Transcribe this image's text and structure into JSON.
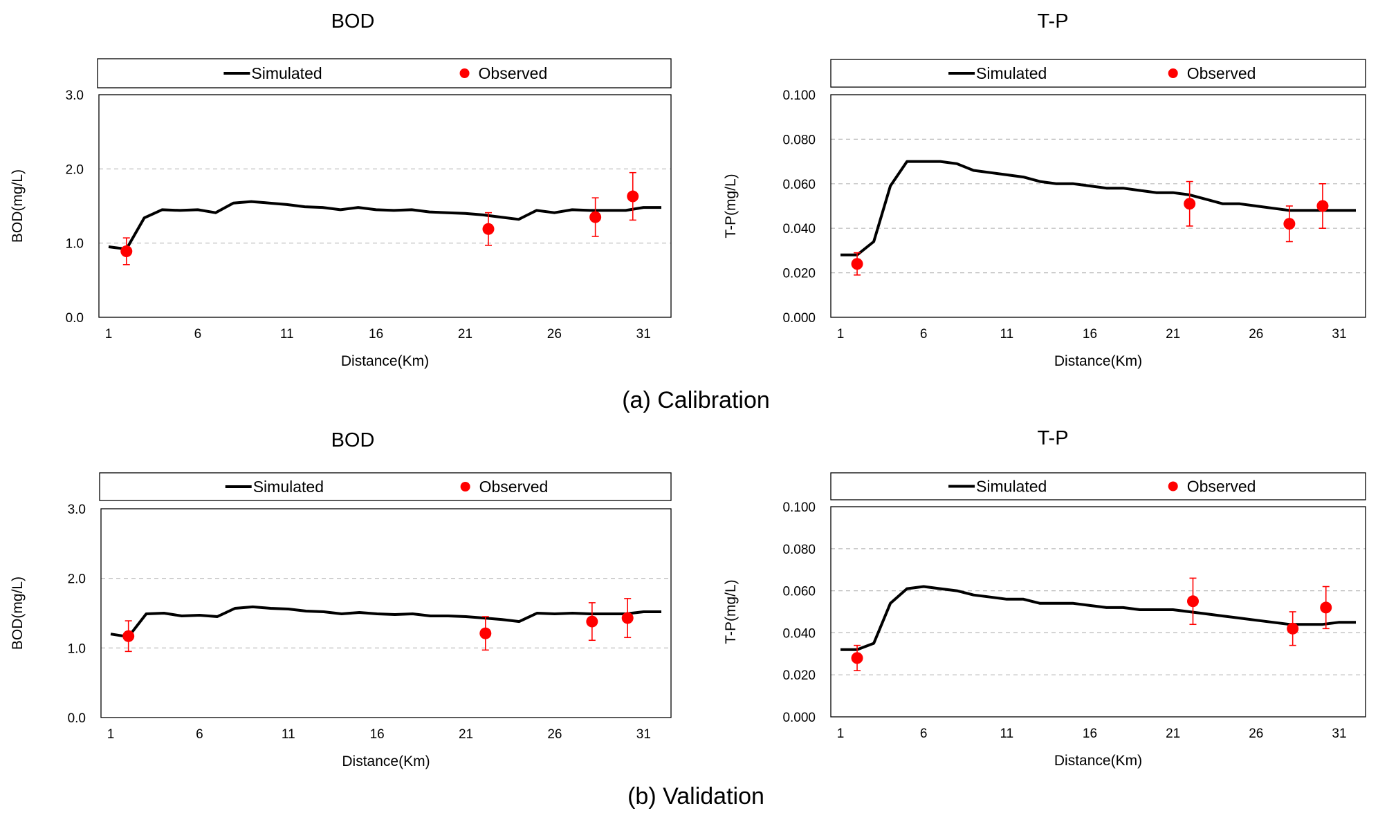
{
  "colors": {
    "simulated": "#000000",
    "observed": "#ff0000",
    "grid": "#b8b8b8"
  },
  "captions": [
    "(a) Calibration",
    "(b) Validation"
  ],
  "chart_data": [
    {
      "type": "line",
      "title": "BOD",
      "group": "Calibration",
      "xlabel": "Distance(Km)",
      "ylabel": "BOD(mg/L)",
      "xlim": [
        1,
        32
      ],
      "ylim": [
        0,
        3
      ],
      "x_ticks": [
        1,
        6,
        11,
        16,
        21,
        26,
        31
      ],
      "y_ticks": [
        "0.0",
        "1.0",
        "2.0",
        "3.0"
      ],
      "y_tick_values": [
        0,
        1,
        2,
        3
      ],
      "legend": [
        "Simulated",
        "Observed"
      ],
      "legend_placement": "top",
      "series": [
        {
          "name": "Simulated",
          "kind": "line",
          "x": [
            1,
            2,
            3,
            4,
            5,
            6,
            7,
            8,
            9,
            10,
            11,
            12,
            13,
            14,
            15,
            16,
            17,
            18,
            19,
            20,
            21,
            22,
            23,
            24,
            25,
            26,
            27,
            28,
            29,
            30,
            31,
            32
          ],
          "y": [
            0.95,
            0.92,
            1.34,
            1.45,
            1.44,
            1.45,
            1.41,
            1.54,
            1.56,
            1.54,
            1.52,
            1.49,
            1.48,
            1.45,
            1.48,
            1.45,
            1.44,
            1.45,
            1.42,
            1.41,
            1.4,
            1.38,
            1.35,
            1.32,
            1.44,
            1.41,
            1.45,
            1.44,
            1.44,
            1.44,
            1.48,
            1.48
          ]
        },
        {
          "name": "Observed",
          "kind": "scatter",
          "x": [
            2,
            22.3,
            28.3,
            30.4
          ],
          "y": [
            0.89,
            1.19,
            1.35,
            1.63
          ],
          "err": [
            0.18,
            0.22,
            0.26,
            0.32
          ]
        }
      ]
    },
    {
      "type": "line",
      "title": "T-P",
      "group": "Calibration",
      "xlabel": "Distance(Km)",
      "ylabel": "T-P(mg/L)",
      "xlim": [
        1,
        32
      ],
      "ylim": [
        0,
        0.1
      ],
      "x_ticks": [
        1,
        6,
        11,
        16,
        21,
        26,
        31
      ],
      "y_ticks": [
        "0.000",
        "0.020",
        "0.040",
        "0.060",
        "0.080",
        "0.100"
      ],
      "y_tick_values": [
        0,
        0.02,
        0.04,
        0.06,
        0.08,
        0.1
      ],
      "legend": [
        "Simulated",
        "Observed"
      ],
      "legend_placement": "top",
      "series": [
        {
          "name": "Simulated",
          "kind": "line",
          "x": [
            1,
            2,
            3,
            4,
            5,
            6,
            7,
            8,
            9,
            10,
            11,
            12,
            13,
            14,
            15,
            16,
            17,
            18,
            19,
            20,
            21,
            22,
            23,
            24,
            25,
            26,
            27,
            28,
            29,
            30,
            31,
            32
          ],
          "y": [
            0.028,
            0.028,
            0.034,
            0.059,
            0.07,
            0.07,
            0.07,
            0.069,
            0.066,
            0.065,
            0.064,
            0.063,
            0.061,
            0.06,
            0.06,
            0.059,
            0.058,
            0.058,
            0.057,
            0.056,
            0.056,
            0.055,
            0.053,
            0.051,
            0.051,
            0.05,
            0.049,
            0.048,
            0.048,
            0.048,
            0.048,
            0.048
          ]
        },
        {
          "name": "Observed",
          "kind": "scatter",
          "x": [
            2,
            22,
            28,
            30
          ],
          "y": [
            0.024,
            0.051,
            0.042,
            0.05
          ],
          "err": [
            0.005,
            0.01,
            0.008,
            0.01
          ]
        }
      ]
    },
    {
      "type": "line",
      "title": "BOD",
      "group": "Validation",
      "xlabel": "Distance(Km)",
      "ylabel": "BOD(mg/L)",
      "xlim": [
        1,
        32
      ],
      "ylim": [
        0,
        3
      ],
      "x_ticks": [
        1,
        6,
        11,
        16,
        21,
        26,
        31
      ],
      "y_ticks": [
        "0.0",
        "1.0",
        "2.0",
        "3.0"
      ],
      "y_tick_values": [
        0,
        1,
        2,
        3
      ],
      "legend": [
        "Simulated",
        "Observed"
      ],
      "legend_placement": "top",
      "series": [
        {
          "name": "Simulated",
          "kind": "line",
          "x": [
            1,
            2,
            3,
            4,
            5,
            6,
            7,
            8,
            9,
            10,
            11,
            12,
            13,
            14,
            15,
            16,
            17,
            18,
            19,
            20,
            21,
            22,
            23,
            24,
            25,
            26,
            27,
            28,
            29,
            30,
            31,
            32
          ],
          "y": [
            1.2,
            1.16,
            1.49,
            1.5,
            1.46,
            1.47,
            1.45,
            1.57,
            1.59,
            1.57,
            1.56,
            1.53,
            1.52,
            1.49,
            1.51,
            1.49,
            1.48,
            1.49,
            1.46,
            1.46,
            1.45,
            1.43,
            1.41,
            1.38,
            1.5,
            1.49,
            1.5,
            1.49,
            1.49,
            1.49,
            1.52,
            1.52
          ]
        },
        {
          "name": "Observed",
          "kind": "scatter",
          "x": [
            2,
            22.1,
            28.1,
            30.1
          ],
          "y": [
            1.17,
            1.21,
            1.38,
            1.43
          ],
          "err": [
            0.22,
            0.24,
            0.27,
            0.28
          ]
        }
      ]
    },
    {
      "type": "line",
      "title": "T-P",
      "group": "Validation",
      "xlabel": "Distance(Km)",
      "ylabel": "T-P(mg/L)",
      "xlim": [
        1,
        32
      ],
      "ylim": [
        0,
        0.1
      ],
      "x_ticks": [
        1,
        6,
        11,
        16,
        21,
        26,
        31
      ],
      "y_ticks": [
        "0.000",
        "0.020",
        "0.040",
        "0.060",
        "0.080",
        "0.100"
      ],
      "y_tick_values": [
        0,
        0.02,
        0.04,
        0.06,
        0.08,
        0.1
      ],
      "legend": [
        "Simulated",
        "Observed"
      ],
      "legend_placement": "top",
      "series": [
        {
          "name": "Simulated",
          "kind": "line",
          "x": [
            1,
            2,
            3,
            4,
            5,
            6,
            7,
            8,
            9,
            10,
            11,
            12,
            13,
            14,
            15,
            16,
            17,
            18,
            19,
            20,
            21,
            22,
            23,
            24,
            25,
            26,
            27,
            28,
            29,
            30,
            31,
            32
          ],
          "y": [
            0.032,
            0.032,
            0.035,
            0.054,
            0.061,
            0.062,
            0.061,
            0.06,
            0.058,
            0.057,
            0.056,
            0.056,
            0.054,
            0.054,
            0.054,
            0.053,
            0.052,
            0.052,
            0.051,
            0.051,
            0.051,
            0.05,
            0.049,
            0.048,
            0.047,
            0.046,
            0.045,
            0.044,
            0.044,
            0.044,
            0.045,
            0.045
          ]
        },
        {
          "name": "Observed",
          "kind": "scatter",
          "x": [
            2,
            22.2,
            28.2,
            30.2
          ],
          "y": [
            0.028,
            0.055,
            0.042,
            0.052
          ],
          "err": [
            0.006,
            0.011,
            0.008,
            0.01
          ]
        }
      ]
    }
  ]
}
